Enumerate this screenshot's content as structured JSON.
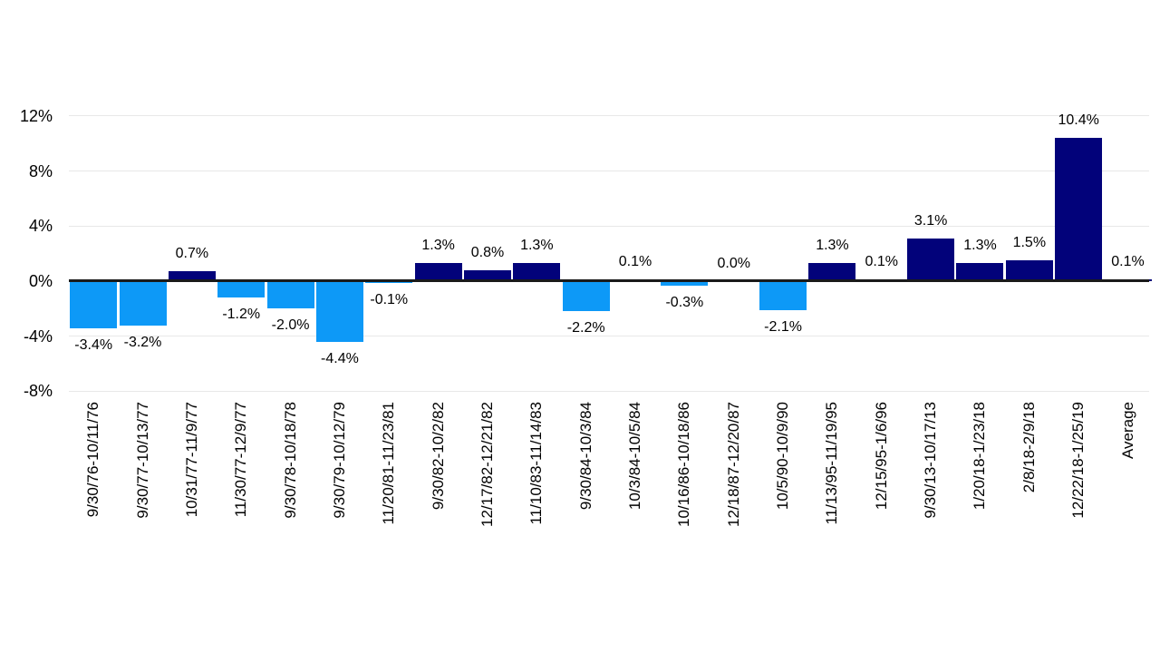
{
  "chart_data": {
    "type": "bar",
    "title": "",
    "xlabel": "",
    "ylabel": "",
    "categories": [
      "9/30/76-10/11/76",
      "9/30/77-10/13/77",
      "10/31/77-11/9/77",
      "11/30/77-12/9/77",
      "9/30/78-10/18/78",
      "9/30/79-10/12/79",
      "11/20/81-11/23/81",
      "9/30/82-10/2/82",
      "12/17/82-12/21/82",
      "11/10/83-11/14/83",
      "9/30/84-10/3/84",
      "10/3/84-10/5/84",
      "10/16/86-10/18/86",
      "12/18/87-12/20/87",
      "10/5/90-10/9/90",
      "11/13/95-11/19/95",
      "12/15/95-1/6/96",
      "9/30/13-10/17/13",
      "1/20/18-1/23/18",
      "2/8/18-2/9/18",
      "12/22/18-1/25/19",
      "Average"
    ],
    "values": [
      -3.4,
      -3.2,
      0.7,
      -1.2,
      -2.0,
      -4.4,
      -0.1,
      1.3,
      0.8,
      1.3,
      -2.2,
      0.1,
      -0.3,
      0.0,
      -2.1,
      1.3,
      0.1,
      3.1,
      1.3,
      1.5,
      10.4,
      0.1
    ],
    "value_labels": [
      "-3.4%",
      "-3.2%",
      "0.7%",
      "-1.2%",
      "-2.0%",
      "-4.4%",
      "-0.1%",
      "1.3%",
      "0.8%",
      "1.3%",
      "-2.2%",
      "0.1%",
      "-0.3%",
      "0.0%",
      "-2.1%",
      "1.3%",
      "0.1%",
      "3.1%",
      "1.3%",
      "1.5%",
      "10.4%",
      "0.1%"
    ],
    "y_ticks": [
      12,
      8,
      4,
      0,
      -4,
      -8
    ],
    "y_tick_labels": [
      "12%",
      "8%",
      "4%",
      "0%",
      "-4%",
      "-8%"
    ],
    "ylim": [
      -8,
      12
    ],
    "grid": true,
    "legend": "none",
    "x_tick_rotation_deg": 90,
    "colors": {
      "positive": "#02027A",
      "negative": "#0D99F7",
      "gridline": "#E8E8E8",
      "axis": "#1A1A1A",
      "text": "#000000",
      "background": "#FFFFFF"
    }
  }
}
